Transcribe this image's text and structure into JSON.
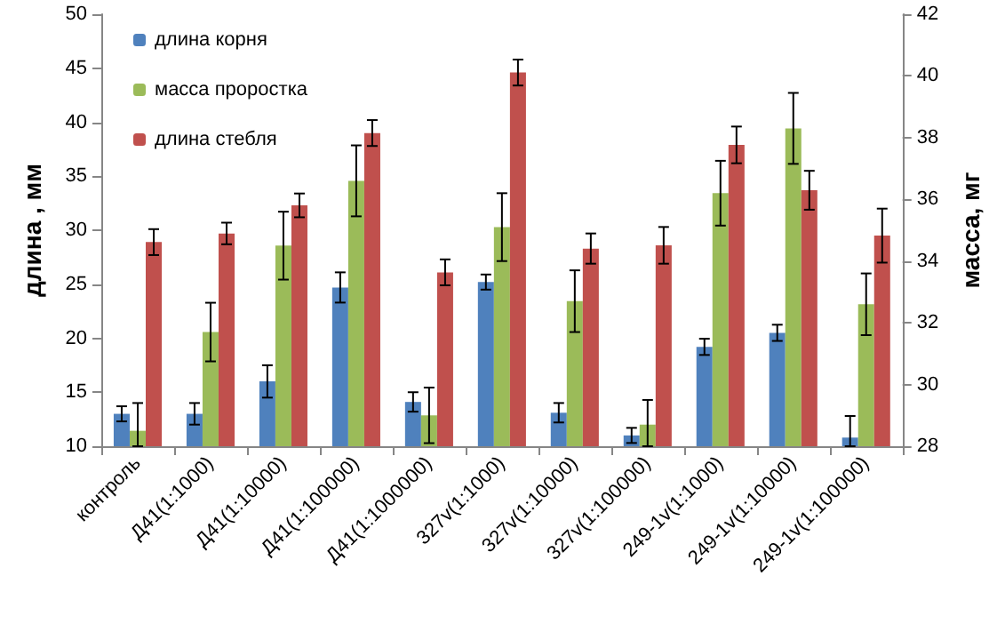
{
  "chart_data": {
    "type": "bar",
    "categories": [
      "контроль",
      "Д41(1:1000)",
      "Д41(1:10000)",
      "Д41(1:100000)",
      "Д41(1:1000000)",
      "327v(1:1000)",
      "327v(1:10000)",
      "327v(1:100000)",
      "249-1v(1:1000)",
      "249-1v(1:10000)",
      "249-1v(1:100000)"
    ],
    "series": [
      {
        "name": "длина корня",
        "color": "#4f81bd",
        "values": [
          13.0,
          13.0,
          16.0,
          24.7,
          14.1,
          25.2,
          13.1,
          11.0,
          19.2,
          20.5,
          10.8
        ],
        "errors": [
          0.7,
          1.0,
          1.5,
          1.4,
          0.9,
          0.7,
          0.9,
          0.7,
          0.75,
          0.75,
          [
            10,
            12.8
          ]
        ]
      },
      {
        "name": "масса проростка",
        "color": "#9bbb59",
        "axis": "y2",
        "values": [
          28.5,
          31.7,
          34.5,
          36.6,
          29.0,
          35.1,
          32.7,
          28.7,
          36.2,
          38.3,
          32.6
        ],
        "errors": [
          [
            28,
            29.4
          ],
          0.95,
          1.1,
          1.15,
          0.9,
          1.1,
          1.0,
          [
            28,
            29.5
          ],
          1.05,
          1.15,
          1.0
        ]
      },
      {
        "name": "длина стебля",
        "color": "#c0504d",
        "values": [
          28.9,
          29.7,
          32.3,
          39.0,
          26.1,
          44.6,
          28.3,
          28.6,
          37.9,
          33.7,
          29.5
        ],
        "errors": [
          1.2,
          1.0,
          1.1,
          1.2,
          1.2,
          1.2,
          1.4,
          1.7,
          1.7,
          1.8,
          2.5
        ]
      }
    ],
    "ylabel": "длина , мм",
    "y2label": "масса, мг",
    "ylim": [
      10,
      50
    ],
    "yticks": [
      10,
      15,
      20,
      25,
      30,
      35,
      40,
      45,
      50
    ],
    "y2lim": [
      28,
      42
    ],
    "y2ticks": [
      28,
      30,
      32,
      34,
      36,
      38,
      40,
      42
    ],
    "grid": false,
    "legend": "top left"
  }
}
